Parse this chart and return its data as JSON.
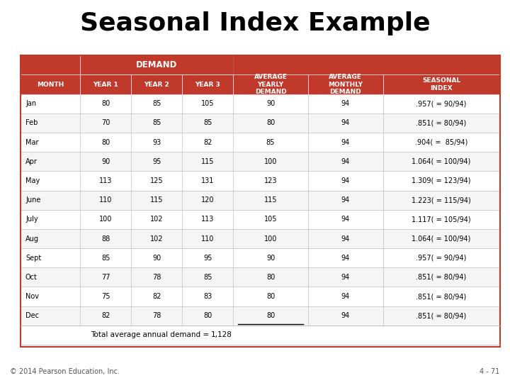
{
  "title": "Seasonal Index Example",
  "header_color": "#C0392B",
  "header_text_color": "#FFFFFF",
  "row_colors": [
    "#FFFFFF",
    "#F2F2F2"
  ],
  "border_color": "#C0392B",
  "text_color": "#000000",
  "footer_text": "© 2014 Pearson Education, Inc.",
  "page_num": "4 - 71",
  "demand_span_label": "DEMAND",
  "col_headers": [
    "MONTH",
    "YEAR 1",
    "YEAR 2",
    "YEAR 3",
    "AVERAGE\nYEARLY\nDEMAND",
    "AVERAGE\nMONTHLY\nDEMAND",
    "SEASONAL\nINDEX"
  ],
  "rows": [
    [
      "Jan",
      "80",
      "85",
      "105",
      "90",
      "94",
      ".957( = 90/94)"
    ],
    [
      "Feb",
      "70",
      "85",
      "85",
      "80",
      "94",
      ".851( = 80/94)"
    ],
    [
      "Mar",
      "80",
      "93",
      "82",
      "85",
      "94",
      ".904( =  85/94)"
    ],
    [
      "Apr",
      "90",
      "95",
      "115",
      "100",
      "94",
      "1.064( = 100/94)"
    ],
    [
      "May",
      "113",
      "125",
      "131",
      "123",
      "94",
      "1.309( = 123/94)"
    ],
    [
      "June",
      "110",
      "115",
      "120",
      "115",
      "94",
      "1.223( = 115/94)"
    ],
    [
      "July",
      "100",
      "102",
      "113",
      "105",
      "94",
      "1.117( = 105/94)"
    ],
    [
      "Aug",
      "88",
      "102",
      "110",
      "100",
      "94",
      "1.064( = 100/94)"
    ],
    [
      "Sept",
      "85",
      "90",
      "95",
      "90",
      "94",
      ".957( = 90/94)"
    ],
    [
      "Oct",
      "77",
      "78",
      "85",
      "80",
      "94",
      ".851( = 80/94)"
    ],
    [
      "Nov",
      "75",
      "82",
      "83",
      "80",
      "94",
      ".851( = 80/94)"
    ],
    [
      "Dec",
      "82",
      "78",
      "80",
      "80",
      "94",
      ".851( = 80/94)"
    ]
  ],
  "total_label": "Total average annual demand =",
  "total_value": "1,128",
  "bg_color": "#FFFFFF"
}
